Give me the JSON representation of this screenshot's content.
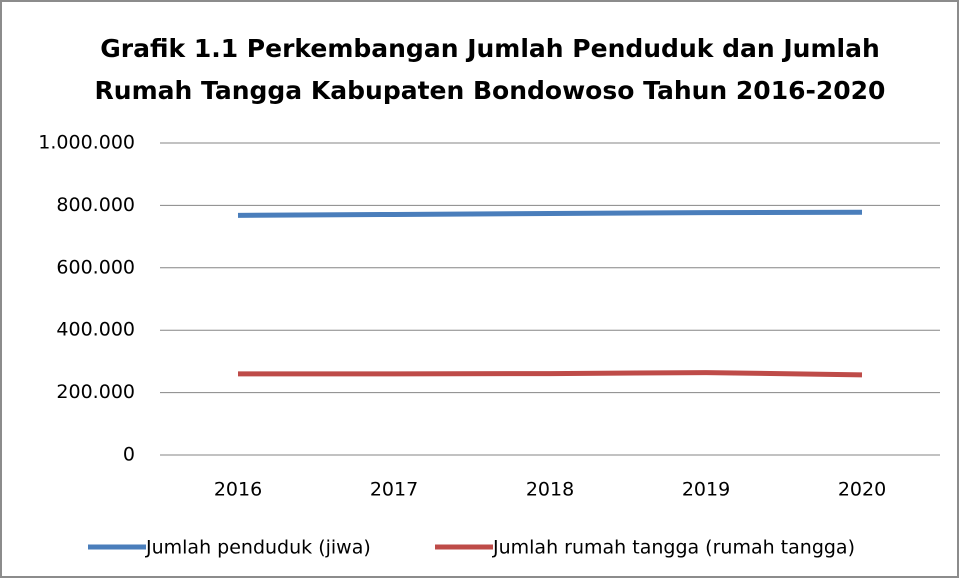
{
  "chart_data": {
    "type": "line",
    "title": [
      "Grafik 1.1 Perkembangan Jumlah Penduduk dan Jumlah",
      "Rumah Tangga Kabupaten Bondowoso Tahun 2016-2020"
    ],
    "categories": [
      "2016",
      "2017",
      "2018",
      "2019",
      "2020"
    ],
    "series": [
      {
        "name": "Jumlah penduduk (jiwa)",
        "color": "#4a7ebb",
        "values": [
          768000,
          771000,
          774000,
          777000,
          778000
        ]
      },
      {
        "name": "Jumlah rumah tangga (rumah tangga)",
        "color": "#be4b48",
        "values": [
          260000,
          260000,
          261000,
          264000,
          257000
        ]
      }
    ],
    "ylim": [
      0,
      1000000
    ],
    "yticks": [
      0,
      {
        "value": 200000,
        "label": "200.000"
      },
      {
        "value": 400000,
        "label": "400.000"
      },
      {
        "value": 600000,
        "label": "600.000"
      },
      {
        "value": 800000,
        "label": "800.000"
      },
      {
        "value": 1000000,
        "label": "1.000.000"
      }
    ],
    "grid": true,
    "legend": "bottom"
  }
}
